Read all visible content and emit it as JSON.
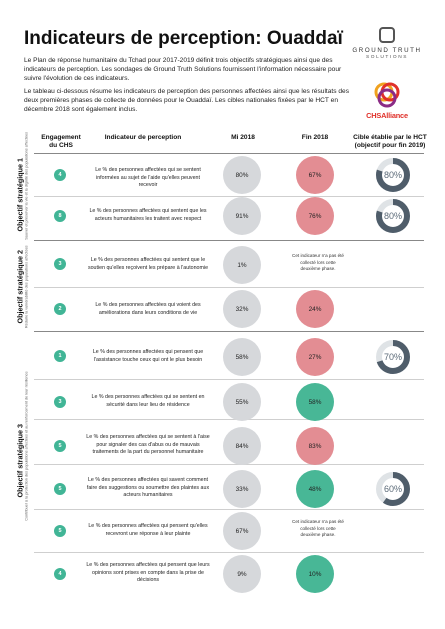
{
  "title": "Indicateurs de perception: Ouaddaï",
  "intro": {
    "p1": "Le Plan de réponse humanitaire du Tchad pour 2017-2019 définit trois objectifs stratégiques ainsi que des indicateurs de perception. Les sondages de Ground Truth Solutions fournissent l'information nécessaire pour suivre l'évolution de ces indicateurs.",
    "p2": "Le tableau ci-dessous résume les indicateurs de perception des personnes affectées ainsi que les résultats des deux premières phases de collecte de données pour le Ouaddaï. Les cibles nationales fixées par le HCT en décembre 2018 sont également inclus."
  },
  "logos": {
    "gts_line1": "GROUND TRUTH",
    "gts_line2": "SOLUTIONS",
    "chs": "CHSAlliance"
  },
  "headers": {
    "engagement": "Engagement du CHS",
    "indicator": "Indicateur de perception",
    "mid": "Mi 2018",
    "end": "Fin 2018",
    "target": "Cible établie par le HCT (objectif pour fin 2019)"
  },
  "objectives": [
    {
      "title": "Objectif stratégique 1",
      "sub": "Sauver et préserver la vie et la dignité des populations affectées"
    },
    {
      "title": "Objectif stratégique 2",
      "sub": "Réduire la vulnérabilité des populations affectées"
    },
    {
      "title": "Objectif stratégique 3",
      "sub": "Contribuer à la protection des populations affectées et au renforcement de leur résilience"
    }
  ],
  "rows": [
    {
      "chs": "4",
      "text": "Le % des personnes affectées qui se sentent informées au sujet de l'aide qu'elles peuvent recevoir",
      "mid": "80%",
      "end": "67%",
      "end_color": "pink",
      "target": "80%",
      "target_value": 80
    },
    {
      "chs": "8",
      "text": "Le % des personnes affectées qui sentent que les acteurs humanitaires les traitent avec respect",
      "mid": "91%",
      "end": "76%",
      "end_color": "pink",
      "target": "80%",
      "target_value": 80
    },
    {
      "chs": "3",
      "text": "Le % des personnes affectées qui sentent que le soutien qu'elles reçoivent les prépare à l'autonomie",
      "mid": "1%",
      "end_note": "Cet indicateur n'a pas été collecté lors cette deuxième phase."
    },
    {
      "chs": "2",
      "text": "Le % des personnes affectées qui voient des améliorations dans leurs conditions de vie",
      "mid": "32%",
      "end": "24%",
      "end_color": "pink"
    },
    {
      "chs": "1",
      "text": "Le % des personnes affectées qui pensent que l'assistance touche ceux qui ont le plus besoin",
      "mid": "58%",
      "end": "27%",
      "end_color": "pink",
      "target": "70%",
      "target_value": 70
    },
    {
      "chs": "3",
      "text": "Le % des personnes affectées qui se sentent en sécurité dans leur lieu de résidence",
      "mid": "55%",
      "end": "58%",
      "end_color": "green"
    },
    {
      "chs": "5",
      "text": "Le % des personnes affectées qui se sentent à l'aise pour signaler des cas d'abus ou de mauvais traitements de la part du personnel humanitaire",
      "mid": "84%",
      "end": "83%",
      "end_color": "pink"
    },
    {
      "chs": "5",
      "text": "Le % des personnes affectées qui savent comment faire des suggestions ou soumettre des plaintes aux acteurs humanitaires",
      "mid": "33%",
      "end": "48%",
      "end_color": "green",
      "target": "60%",
      "target_value": 60
    },
    {
      "chs": "5",
      "text": "Le % des personnes affectées qui pensent qu'elles recevront une réponse à leur plainte",
      "mid": "67%",
      "end_note": "Cet indicateur n'a pas été collecté lors cette deuxième phase."
    },
    {
      "chs": "4",
      "text": "Le % des personnes affectées qui pensent que leurs opinions sont prises en compte dans la prise de décisions",
      "mid": "9%",
      "end": "10%",
      "end_color": "green"
    }
  ],
  "colors": {
    "pink": "#e38d93",
    "green": "#48b796",
    "grey": "#d6d8db",
    "ring": "#4f5d6a",
    "ring_track": "#dfe3e6",
    "chs_badge": "#41b596"
  }
}
